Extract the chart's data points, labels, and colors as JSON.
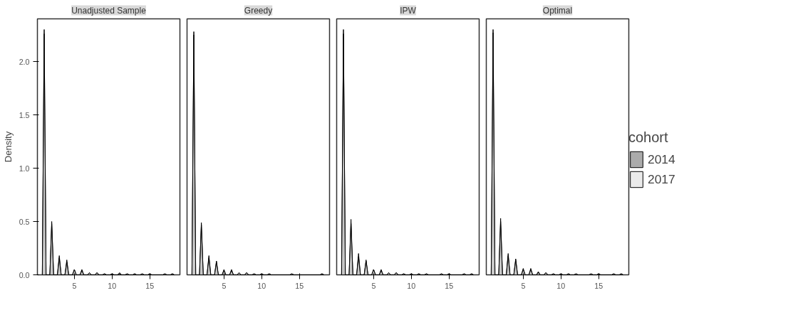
{
  "chart_data": [
    {
      "type": "area",
      "title": "Unadjusted Sample",
      "ylabel": "Density",
      "xlim": [
        0.1,
        19
      ],
      "ylim": [
        0,
        2.4
      ],
      "xticks": [
        5,
        10,
        15
      ],
      "yticks": [
        {
          "value": 0,
          "label": "0.0"
        },
        {
          "value": 0.5,
          "label": "0.5"
        },
        {
          "value": 1,
          "label": "1.0"
        },
        {
          "value": 1.5,
          "label": "1.5"
        },
        {
          "value": 2,
          "label": "2.0"
        }
      ],
      "x": [
        0.75,
        1,
        1.25,
        1.75,
        2,
        2.25,
        2.75,
        3,
        3.25,
        3.75,
        4,
        4.25,
        4.75,
        5,
        5.25,
        5.75,
        6,
        6.25,
        6.75,
        7,
        7.25,
        7.75,
        8,
        8.25,
        8.75,
        9,
        9.25,
        9.75,
        10,
        10.25,
        10.75,
        11,
        11.25,
        11.75,
        12,
        12.25,
        12.75,
        13,
        13.25,
        13.75,
        14,
        14.25,
        14.75,
        15,
        15.25,
        15.75,
        16,
        16.25,
        16.75,
        17,
        17.25,
        17.75,
        18,
        18.25
      ],
      "series": [
        {
          "color": "#737373",
          "values": [
            0,
            2.3,
            0,
            0,
            0.5,
            0,
            0,
            0.18,
            0,
            0,
            0.14,
            0,
            0,
            0.05,
            0,
            0,
            0.05,
            0,
            0,
            0.02,
            0,
            0,
            0.02,
            0,
            0,
            0.01,
            0,
            0,
            0.01,
            0,
            0,
            0.02,
            0,
            0,
            0.01,
            0,
            0,
            0.01,
            0,
            0,
            0.01,
            0,
            0,
            0.01,
            0,
            0,
            0,
            0,
            0,
            0.01,
            0,
            0,
            0.01,
            0
          ]
        },
        {
          "color": "#dcdcdc",
          "values": [
            0,
            2.26,
            0,
            0,
            0.48,
            0,
            0,
            0.16,
            0,
            0,
            0.12,
            0,
            0,
            0.05,
            0,
            0,
            0.04,
            0,
            0,
            0.02,
            0,
            0,
            0.02,
            0,
            0,
            0.01,
            0,
            0,
            0.01,
            0,
            0,
            0.01,
            0,
            0,
            0.01,
            0,
            0,
            0.01,
            0,
            0,
            0.01,
            0,
            0,
            0.01,
            0,
            0,
            0,
            0,
            0,
            0.01,
            0,
            0,
            0.01,
            0
          ]
        }
      ]
    },
    {
      "type": "area",
      "title": "Greedy",
      "tick_labels": "x",
      "xlim": [
        0.1,
        19
      ],
      "ylim": [
        0,
        2.4
      ],
      "xticks": [
        5,
        10,
        15
      ],
      "x": [
        0.75,
        1,
        1.25,
        1.75,
        2,
        2.25,
        2.75,
        3,
        3.25,
        3.75,
        4,
        4.25,
        4.75,
        5,
        5.25,
        5.75,
        6,
        6.25,
        6.75,
        7,
        7.25,
        7.75,
        8,
        8.25,
        8.75,
        9,
        9.25,
        9.75,
        10,
        10.25,
        10.75,
        11,
        11.25,
        11.75,
        12,
        12.25,
        12.75,
        13,
        13.25,
        13.75,
        14,
        14.25,
        14.75,
        15,
        15.25,
        15.75,
        16,
        16.25,
        16.75,
        17,
        17.25,
        17.75,
        18,
        18.25
      ],
      "series": [
        {
          "color": "#737373",
          "values": [
            0,
            2.28,
            0,
            0,
            0.49,
            0,
            0,
            0.18,
            0,
            0,
            0.13,
            0,
            0,
            0.05,
            0,
            0,
            0.05,
            0,
            0,
            0.02,
            0,
            0,
            0.02,
            0,
            0,
            0.01,
            0,
            0,
            0.01,
            0,
            0,
            0.01,
            0,
            0,
            0,
            0,
            0,
            0,
            0,
            0,
            0.01,
            0,
            0,
            0,
            0,
            0,
            0,
            0,
            0,
            0,
            0,
            0,
            0.01,
            0
          ]
        },
        {
          "color": "#dcdcdc",
          "values": [
            0,
            2.25,
            0,
            0,
            0.47,
            0,
            0,
            0.16,
            0,
            0,
            0.12,
            0,
            0,
            0.04,
            0,
            0,
            0.04,
            0,
            0,
            0.02,
            0,
            0,
            0.02,
            0,
            0,
            0.01,
            0,
            0,
            0.01,
            0,
            0,
            0.01,
            0,
            0,
            0,
            0,
            0,
            0,
            0,
            0,
            0.01,
            0,
            0,
            0,
            0,
            0,
            0,
            0,
            0,
            0,
            0,
            0,
            0.01,
            0
          ]
        }
      ]
    },
    {
      "type": "area",
      "title": "IPW",
      "tick_labels": "x",
      "xlim": [
        0.1,
        19
      ],
      "ylim": [
        0,
        2.4
      ],
      "xticks": [
        5,
        10,
        15
      ],
      "x": [
        0.75,
        1,
        1.25,
        1.75,
        2,
        2.25,
        2.75,
        3,
        3.25,
        3.75,
        4,
        4.25,
        4.75,
        5,
        5.25,
        5.75,
        6,
        6.25,
        6.75,
        7,
        7.25,
        7.75,
        8,
        8.25,
        8.75,
        9,
        9.25,
        9.75,
        10,
        10.25,
        10.75,
        11,
        11.25,
        11.75,
        12,
        12.25,
        12.75,
        13,
        13.25,
        13.75,
        14,
        14.25,
        14.75,
        15,
        15.25,
        15.75,
        16,
        16.25,
        16.75,
        17,
        17.25,
        17.75,
        18,
        18.25
      ],
      "series": [
        {
          "color": "#737373",
          "values": [
            0,
            2.3,
            0,
            0,
            0.52,
            0,
            0,
            0.2,
            0,
            0,
            0.14,
            0,
            0,
            0.05,
            0,
            0,
            0.05,
            0,
            0,
            0.02,
            0,
            0,
            0.02,
            0,
            0,
            0.01,
            0,
            0,
            0.01,
            0,
            0,
            0.01,
            0,
            0,
            0.01,
            0,
            0,
            0,
            0,
            0,
            0.01,
            0,
            0,
            0.01,
            0,
            0,
            0,
            0,
            0,
            0.01,
            0,
            0,
            0.01,
            0
          ]
        },
        {
          "color": "#dcdcdc",
          "values": [
            0,
            2.26,
            0,
            0,
            0.48,
            0,
            0,
            0.17,
            0,
            0,
            0.13,
            0,
            0,
            0.05,
            0,
            0,
            0.04,
            0,
            0,
            0.02,
            0,
            0,
            0.02,
            0,
            0,
            0.01,
            0,
            0,
            0.01,
            0,
            0,
            0.01,
            0,
            0,
            0.01,
            0,
            0,
            0,
            0,
            0,
            0.01,
            0,
            0,
            0.01,
            0,
            0,
            0,
            0,
            0,
            0.01,
            0,
            0,
            0.01,
            0
          ]
        }
      ]
    },
    {
      "type": "area",
      "title": "Optimal",
      "tick_labels": "x",
      "legend": "right",
      "legend_title": "cohort",
      "xlim": [
        0.1,
        19
      ],
      "ylim": [
        0,
        2.4
      ],
      "xticks": [
        5,
        10,
        15
      ],
      "x": [
        0.75,
        1,
        1.25,
        1.75,
        2,
        2.25,
        2.75,
        3,
        3.25,
        3.75,
        4,
        4.25,
        4.75,
        5,
        5.25,
        5.75,
        6,
        6.25,
        6.75,
        7,
        7.25,
        7.75,
        8,
        8.25,
        8.75,
        9,
        9.25,
        9.75,
        10,
        10.25,
        10.75,
        11,
        11.25,
        11.75,
        12,
        12.25,
        12.75,
        13,
        13.25,
        13.75,
        14,
        14.25,
        14.75,
        15,
        15.25,
        15.75,
        16,
        16.25,
        16.75,
        17,
        17.25,
        17.75,
        18,
        18.25
      ],
      "series": [
        {
          "name": "2014",
          "color": "#737373",
          "values": [
            0,
            2.3,
            0,
            0,
            0.53,
            0,
            0,
            0.2,
            0,
            0,
            0.15,
            0,
            0,
            0.06,
            0,
            0,
            0.06,
            0,
            0,
            0.03,
            0,
            0,
            0.02,
            0,
            0,
            0.01,
            0,
            0,
            0.01,
            0,
            0,
            0.01,
            0,
            0,
            0.01,
            0,
            0,
            0,
            0,
            0,
            0.01,
            0,
            0,
            0.01,
            0,
            0,
            0,
            0,
            0,
            0.01,
            0,
            0,
            0.01,
            0
          ]
        },
        {
          "name": "2017",
          "color": "#dcdcdc",
          "values": [
            0,
            2.27,
            0,
            0,
            0.5,
            0,
            0,
            0.18,
            0,
            0,
            0.14,
            0,
            0,
            0.05,
            0,
            0,
            0.05,
            0,
            0,
            0.02,
            0,
            0,
            0.02,
            0,
            0,
            0.01,
            0,
            0,
            0.01,
            0,
            0,
            0.01,
            0,
            0,
            0.01,
            0,
            0,
            0,
            0,
            0,
            0.01,
            0,
            0,
            0.01,
            0,
            0,
            0,
            0,
            0,
            0.01,
            0,
            0,
            0.01,
            0
          ]
        }
      ]
    }
  ]
}
